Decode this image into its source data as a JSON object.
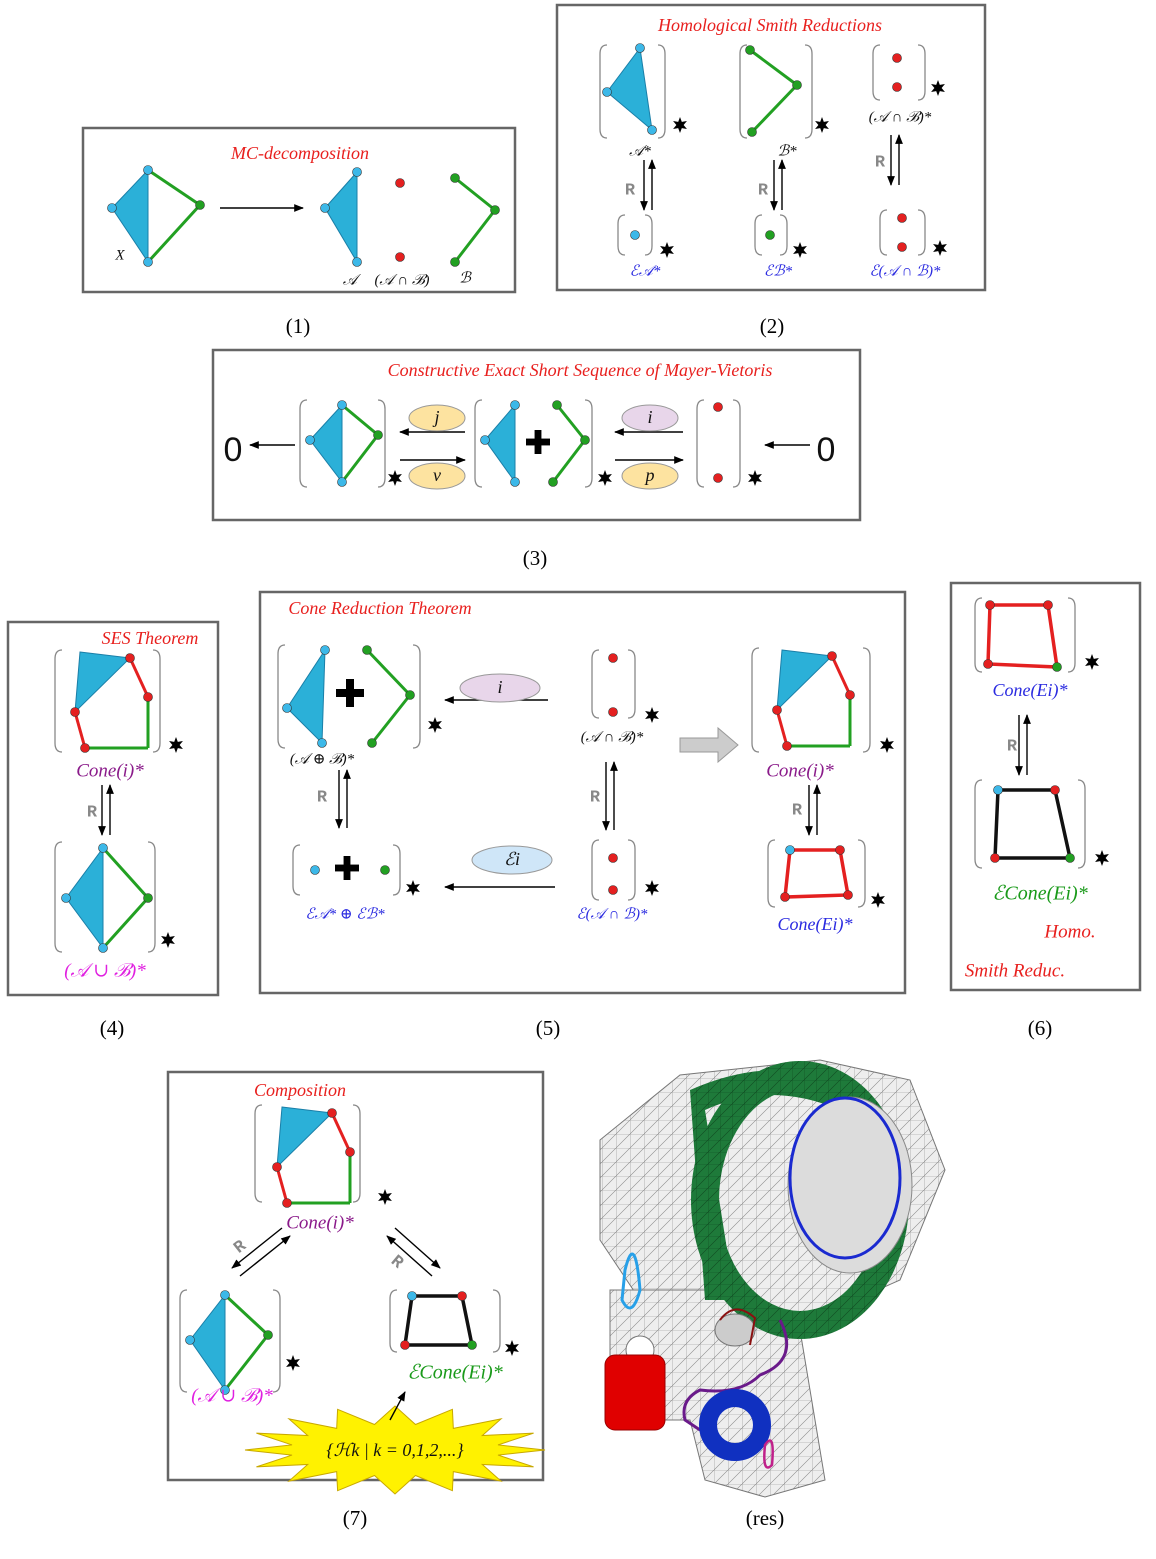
{
  "panels": [
    {
      "title": "MC-decomposition",
      "labels": [
        "X",
        "𝒜",
        "(𝒜 ∩ ℬ)",
        "ℬ"
      ],
      "caption": "(1)"
    },
    {
      "title": "Homological Smith Reductions",
      "labels": [
        "𝒜*",
        "ℬ*",
        "(𝒜 ∩ ℬ)*",
        "R",
        "R",
        "R",
        "ℰ𝒜*",
        "ℰℬ*",
        "ℰ(𝒜 ∩ ℬ)*"
      ],
      "caption": "(2)"
    },
    {
      "title": "Constructive Exact Short Sequence of Mayer-Vietoris",
      "labels": [
        "0",
        "j",
        "v",
        "i",
        "p",
        "0"
      ],
      "caption": "(3)"
    },
    {
      "title": "SES Theorem",
      "labels": [
        "Cone(i)*",
        "R",
        "(𝒜 ∪ ℬ)*"
      ],
      "caption": "(4)"
    },
    {
      "title": "Cone Reduction Theorem",
      "labels": [
        "i",
        "(𝒜 ⊕ ℬ)*",
        "(𝒜 ∩ ℬ)*",
        "R",
        "R",
        "R",
        "ℰi",
        "ℰ𝒜* ⊕ ℰℬ*",
        "ℰ(𝒜 ∩ ℬ)*",
        "Cone(i)*",
        "Cone(Ei)*"
      ],
      "caption": "(5)"
    },
    {
      "labels": [
        "Cone(Ei)*",
        "R",
        "ℰCone(Ei)*",
        "Homo.",
        "Smith Reduc."
      ],
      "caption": "(6)"
    },
    {
      "title": "Composition",
      "labels": [
        "Cone(i)*",
        "R",
        "R",
        "(𝒜 ∪ ℬ)*",
        "ℰCone(Ei)*",
        "{ℋk | k = 0,1,2,...}"
      ],
      "caption": "(7)"
    }
  ],
  "result": {
    "caption": "(res)"
  }
}
